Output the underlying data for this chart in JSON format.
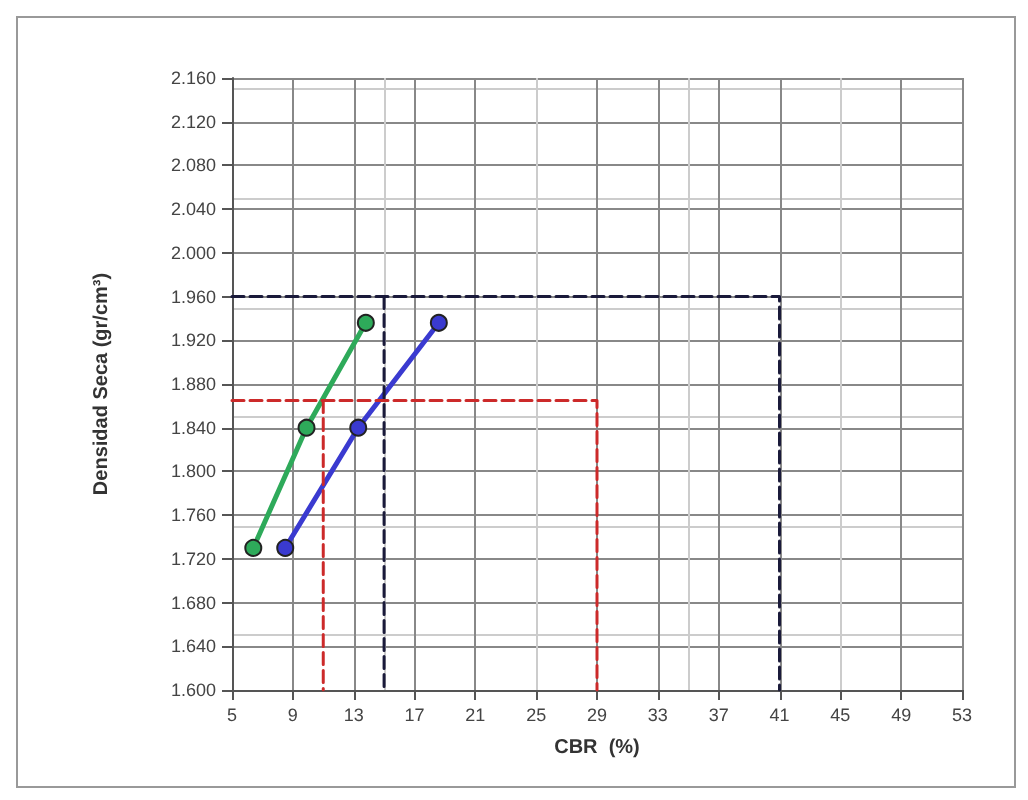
{
  "chart_data": {
    "type": "line",
    "xlabel": "CBR  (%)",
    "ylabel": "Densidad Seca (gr/cm³)",
    "xlim": [
      5,
      53
    ],
    "xticks": [
      5,
      9,
      13,
      17,
      21,
      25,
      29,
      33,
      37,
      41,
      45,
      49,
      53
    ],
    "ylim": [
      1.6,
      2.16
    ],
    "yticks": [
      {
        "value": 1.6,
        "label": "1.600"
      },
      {
        "value": 1.64,
        "label": "1.640"
      },
      {
        "value": 1.68,
        "label": "1.680"
      },
      {
        "value": 1.72,
        "label": "1.720"
      },
      {
        "value": 1.76,
        "label": "1.760"
      },
      {
        "value": 1.8,
        "label": "1.800"
      },
      {
        "value": 1.84,
        "label": "1.840"
      },
      {
        "value": 1.88,
        "label": "1.880"
      },
      {
        "value": 1.92,
        "label": "1.920"
      },
      {
        "value": 1.96,
        "label": "1.960"
      },
      {
        "value": 2.0,
        "label": "2.000"
      },
      {
        "value": 2.04,
        "label": "2.040"
      },
      {
        "value": 2.08,
        "label": "2.080"
      },
      {
        "value": 2.12,
        "label": "2.120"
      },
      {
        "value": 2.16,
        "label": "2.160"
      }
    ],
    "grid": true,
    "marker": "circle",
    "line_style": "solid",
    "series": [
      {
        "color": "#2eaa5a",
        "x": [
          6.4,
          9.9,
          13.8
        ],
        "values": [
          1.73,
          1.84,
          1.936
        ]
      },
      {
        "color": "#3a3ad0",
        "x": [
          8.5,
          13.3,
          18.6
        ],
        "values": [
          1.73,
          1.84,
          1.936
        ]
      },
      {
        "color": "#1a1a3a",
        "marker": "none",
        "line_style": "dashed",
        "x": [
          5,
          41,
          41
        ],
        "values": [
          1.96,
          1.96,
          1.6
        ]
      },
      {
        "color": "#1a1a3a",
        "marker": "none",
        "line_style": "dashed",
        "x": [
          15,
          15
        ],
        "values": [
          1.96,
          1.6
        ]
      },
      {
        "color": "#cc2a2a",
        "marker": "none",
        "line_style": "dashed",
        "x": [
          5,
          29,
          29
        ],
        "values": [
          1.865,
          1.865,
          1.6
        ]
      },
      {
        "color": "#cc2a2a",
        "marker": "none",
        "line_style": "dashed",
        "x": [
          11,
          11
        ],
        "values": [
          1.865,
          1.6
        ]
      }
    ]
  }
}
